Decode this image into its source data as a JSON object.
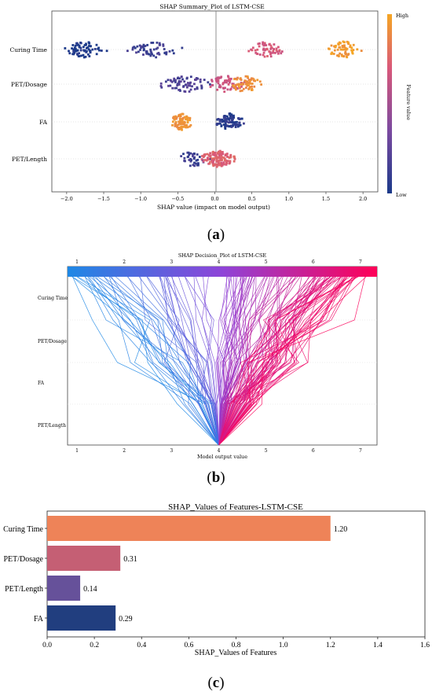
{
  "captions": {
    "a_open": "(",
    "a_letter": "a",
    "a_close": ")",
    "b_open": "(",
    "b_letter": "b",
    "b_close": ")",
    "c_open": "(",
    "c_letter": "c",
    "c_close": ")"
  },
  "chart_data": [
    {
      "id": "summary",
      "type": "scatter",
      "title": "SHAP Summary_Plot of LSTM-CSE",
      "xlabel": "SHAP value (impact on model output)",
      "xlim": [
        -2.2,
        2.2
      ],
      "xticks": [
        -2.0,
        -1.5,
        -1.0,
        -0.5,
        0.0,
        0.5,
        1.0,
        1.5,
        2.0
      ],
      "xtick_labels": [
        "−2.0",
        "−1.5",
        "−1.0",
        "−0.5",
        "0.0",
        "0.5",
        "1.0",
        "1.5",
        "2.0"
      ],
      "features": [
        "Curing Time",
        "PET/Dosage",
        "FA",
        "PET/Length"
      ],
      "clusters": [
        {
          "feature": "Curing Time",
          "center": -1.75,
          "spread": 0.35,
          "n": 70,
          "value": 0.0
        },
        {
          "feature": "Curing Time",
          "center": -0.8,
          "spread": 0.45,
          "n": 60,
          "value": 0.1
        },
        {
          "feature": "Curing Time",
          "center": 0.7,
          "spread": 0.3,
          "n": 55,
          "value": 0.65
        },
        {
          "feature": "Curing Time",
          "center": 1.75,
          "spread": 0.3,
          "n": 65,
          "value": 0.95
        },
        {
          "feature": "PET/Dosage",
          "center": -0.4,
          "spread": 0.45,
          "n": 70,
          "value": 0.15
        },
        {
          "feature": "PET/Dosage",
          "center": 0.15,
          "spread": 0.35,
          "n": 60,
          "value": 0.6
        },
        {
          "feature": "PET/Dosage",
          "center": 0.4,
          "spread": 0.3,
          "n": 60,
          "value": 0.9
        },
        {
          "feature": "FA",
          "center": -0.45,
          "spread": 0.2,
          "n": 80,
          "value": 0.92
        },
        {
          "feature": "FA",
          "center": 0.2,
          "spread": 0.25,
          "n": 100,
          "value": 0.05
        },
        {
          "feature": "PET/Length",
          "center": -0.3,
          "spread": 0.25,
          "n": 40,
          "value": 0.1
        },
        {
          "feature": "PET/Length",
          "center": 0.05,
          "spread": 0.3,
          "n": 130,
          "value": 0.7
        }
      ],
      "colorbar": {
        "label": "Feature value",
        "high": "High",
        "low": "Low",
        "colors": [
          "#1b3a8a",
          "#8a4aa0",
          "#d9587a",
          "#f5a623"
        ]
      }
    },
    {
      "id": "decision",
      "type": "line",
      "title": "SHAP Decision_Plot of LSTM-CSE",
      "xlabel": "Model output value",
      "xlim": [
        0.8,
        7.35
      ],
      "xticks": [
        1,
        2,
        3,
        4,
        5,
        6,
        7
      ],
      "features": [
        "Curing Time",
        "PET/Dosage",
        "FA",
        "PET/Length"
      ],
      "base_value": 4.0,
      "n_lines": 140,
      "colorbar_colors": [
        "#1e88e5",
        "#8e44d8",
        "#ff0057"
      ]
    },
    {
      "id": "importance",
      "type": "bar",
      "title": "SHAP_Values of Features-LSTM-CSE",
      "xlabel": "SHAP_Values of Features",
      "categories": [
        "Curing Time",
        "PET/Dosage",
        "PET/Length",
        "FA"
      ],
      "values": [
        1.2,
        0.31,
        0.14,
        0.29
      ],
      "value_labels": [
        "1.20",
        "0.31",
        "0.14",
        "0.29"
      ],
      "colors": [
        "#ee8358",
        "#c55f74",
        "#66519a",
        "#213e7f"
      ],
      "xlim": [
        0,
        1.6
      ],
      "xticks": [
        0.0,
        0.2,
        0.4,
        0.6,
        0.8,
        1.0,
        1.2,
        1.4,
        1.6
      ],
      "xtick_labels": [
        "0.0",
        "0.2",
        "0.4",
        "0.6",
        "0.8",
        "1.0",
        "1.2",
        "1.4",
        "1.6"
      ]
    }
  ]
}
